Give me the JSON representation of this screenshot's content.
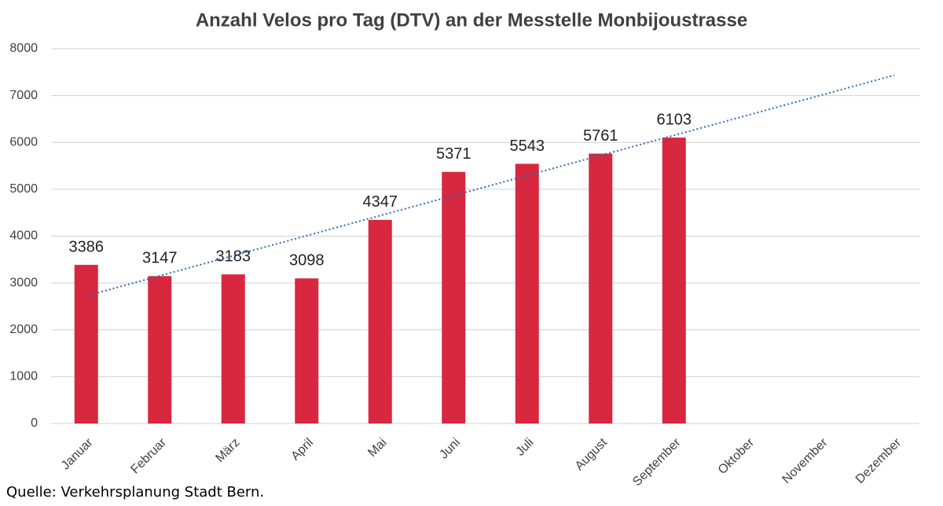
{
  "chart_data": {
    "type": "bar",
    "title": "Anzahl Velos pro Tag (DTV) an der Messtelle Monbijoustrasse",
    "categories": [
      "Januar",
      "Februar",
      "März",
      "April",
      "Mai",
      "Juni",
      "Juli",
      "August",
      "September",
      "Oktober",
      "November",
      "Dezember"
    ],
    "values": [
      3386,
      3147,
      3183,
      3098,
      4347,
      5371,
      5543,
      5761,
      6103,
      null,
      null,
      null
    ],
    "color": "#d7283f",
    "ylim": [
      0,
      8000
    ],
    "yticks": [
      0,
      1000,
      2000,
      3000,
      4000,
      5000,
      6000,
      7000,
      8000
    ],
    "grid": true,
    "trendline": true,
    "trendline_color": "#2e6bb8",
    "source": "Quelle: Verkehrsplanung Stadt Bern."
  }
}
